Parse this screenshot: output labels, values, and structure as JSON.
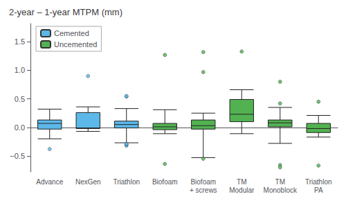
{
  "chart_data": {
    "type": "box",
    "title": "2-year – 1-year MTPM (mm)",
    "categories": [
      "Advance",
      "NexGen",
      "Triathlon",
      "Biofoam",
      "Biofoam\n+ screws",
      "TM\nModular",
      "TM\nMonoblock",
      "Triathlon\nPA"
    ],
    "series": [
      {
        "name": "Cemented",
        "color": "#5bb8e8",
        "values": [
          {
            "whislo": -0.2,
            "q1": -0.03,
            "median": 0.07,
            "q3": 0.13,
            "whishi": 0.32,
            "fliers": [
              -0.38
            ]
          },
          {
            "whislo": -0.07,
            "q1": -0.02,
            "median": -0.01,
            "q3": 0.26,
            "whishi": 0.36,
            "fliers": [
              0.9
            ]
          },
          {
            "whislo": -0.27,
            "q1": -0.01,
            "median": 0.05,
            "q3": 0.11,
            "whishi": 0.33,
            "fliers": [
              -0.32,
              -0.3,
              -0.29,
              0.54,
              0.55
            ]
          },
          null,
          null,
          null,
          null,
          null
        ]
      },
      {
        "name": "Uncemented",
        "color": "#52b252",
        "values": [
          null,
          null,
          null,
          {
            "whislo": -0.11,
            "q1": -0.04,
            "median": 0.01,
            "q3": 0.07,
            "whishi": 0.31,
            "fliers": [
              -0.64,
              1.27
            ]
          },
          {
            "whislo": -0.53,
            "q1": -0.03,
            "median": 0.03,
            "q3": 0.13,
            "whishi": 0.25,
            "fliers": [
              -0.55,
              0.97,
              1.32
            ]
          },
          {
            "whislo": -0.11,
            "q1": 0.1,
            "median": 0.23,
            "q3": 0.49,
            "whishi": 0.66,
            "fliers": [
              1.33
            ]
          },
          {
            "whislo": -0.28,
            "q1": 0.01,
            "median": 0.08,
            "q3": 0.13,
            "whishi": 0.35,
            "fliers": [
              -0.66,
              -0.7,
              0.42,
              0.8
            ]
          },
          {
            "whislo": -0.17,
            "q1": -0.09,
            "median": -0.02,
            "q3": 0.07,
            "whishi": 0.21,
            "fliers": [
              -0.67,
              0.45
            ]
          }
        ]
      }
    ],
    "ylim": [
      -0.78,
      1.82
    ],
    "yticks": [
      {
        "value": -0.5,
        "label": "−0.5"
      },
      {
        "value": 0.0,
        "label": "0.0"
      },
      {
        "value": 0.5,
        "label": "0.5"
      },
      {
        "value": 1.0,
        "label": "1.0"
      },
      {
        "value": 1.5,
        "label": "1.5"
      }
    ],
    "grid": false,
    "legend": "upper left"
  }
}
